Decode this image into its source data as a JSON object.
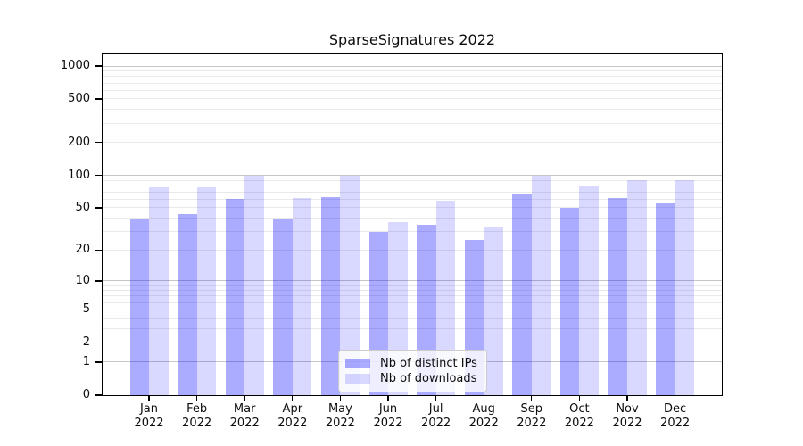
{
  "chart_data": {
    "type": "bar",
    "title": "SparseSignatures 2022",
    "categories": [
      "Jan",
      "Feb",
      "Mar",
      "Apr",
      "May",
      "Jun",
      "Jul",
      "Aug",
      "Sep",
      "Oct",
      "Nov",
      "Dec"
    ],
    "category_year": "2022",
    "series": [
      {
        "name": "Nb of distinct IPs",
        "color": "rgba(0,0,255,0.33)",
        "color_hex": "#ababff",
        "values": [
          39,
          44,
          60,
          39,
          63,
          30,
          35,
          25,
          68,
          50,
          62,
          55
        ]
      },
      {
        "name": "Nb of downloads",
        "color": "rgba(0,0,255,0.15)",
        "color_hex": "#d9d9ff",
        "values": [
          78,
          78,
          100,
          62,
          100,
          37,
          58,
          33,
          100,
          80,
          90,
          90
        ]
      }
    ],
    "yscale": "log1p",
    "ylim": [
      0,
      1300
    ],
    "ytick_values": [
      0,
      1,
      2,
      5,
      10,
      20,
      50,
      100,
      200,
      500,
      1000
    ],
    "ytick_labels": [
      "0",
      "1",
      "2",
      "5",
      "10",
      "20",
      "50",
      "100",
      "200",
      "500",
      "1000"
    ],
    "grid": {
      "major_values": [
        1,
        10,
        100,
        1000
      ],
      "minor_values": [
        2,
        3,
        4,
        5,
        6,
        7,
        8,
        9,
        20,
        30,
        40,
        50,
        60,
        70,
        80,
        90,
        200,
        300,
        400,
        500,
        600,
        700,
        800,
        900
      ],
      "major_color": "#c6c6c6",
      "minor_color": "#e9e9e9"
    },
    "legend": {
      "position": "lower center",
      "entries": [
        "Nb of distinct IPs",
        "Nb of downloads"
      ]
    },
    "xlabel": "",
    "ylabel": ""
  }
}
